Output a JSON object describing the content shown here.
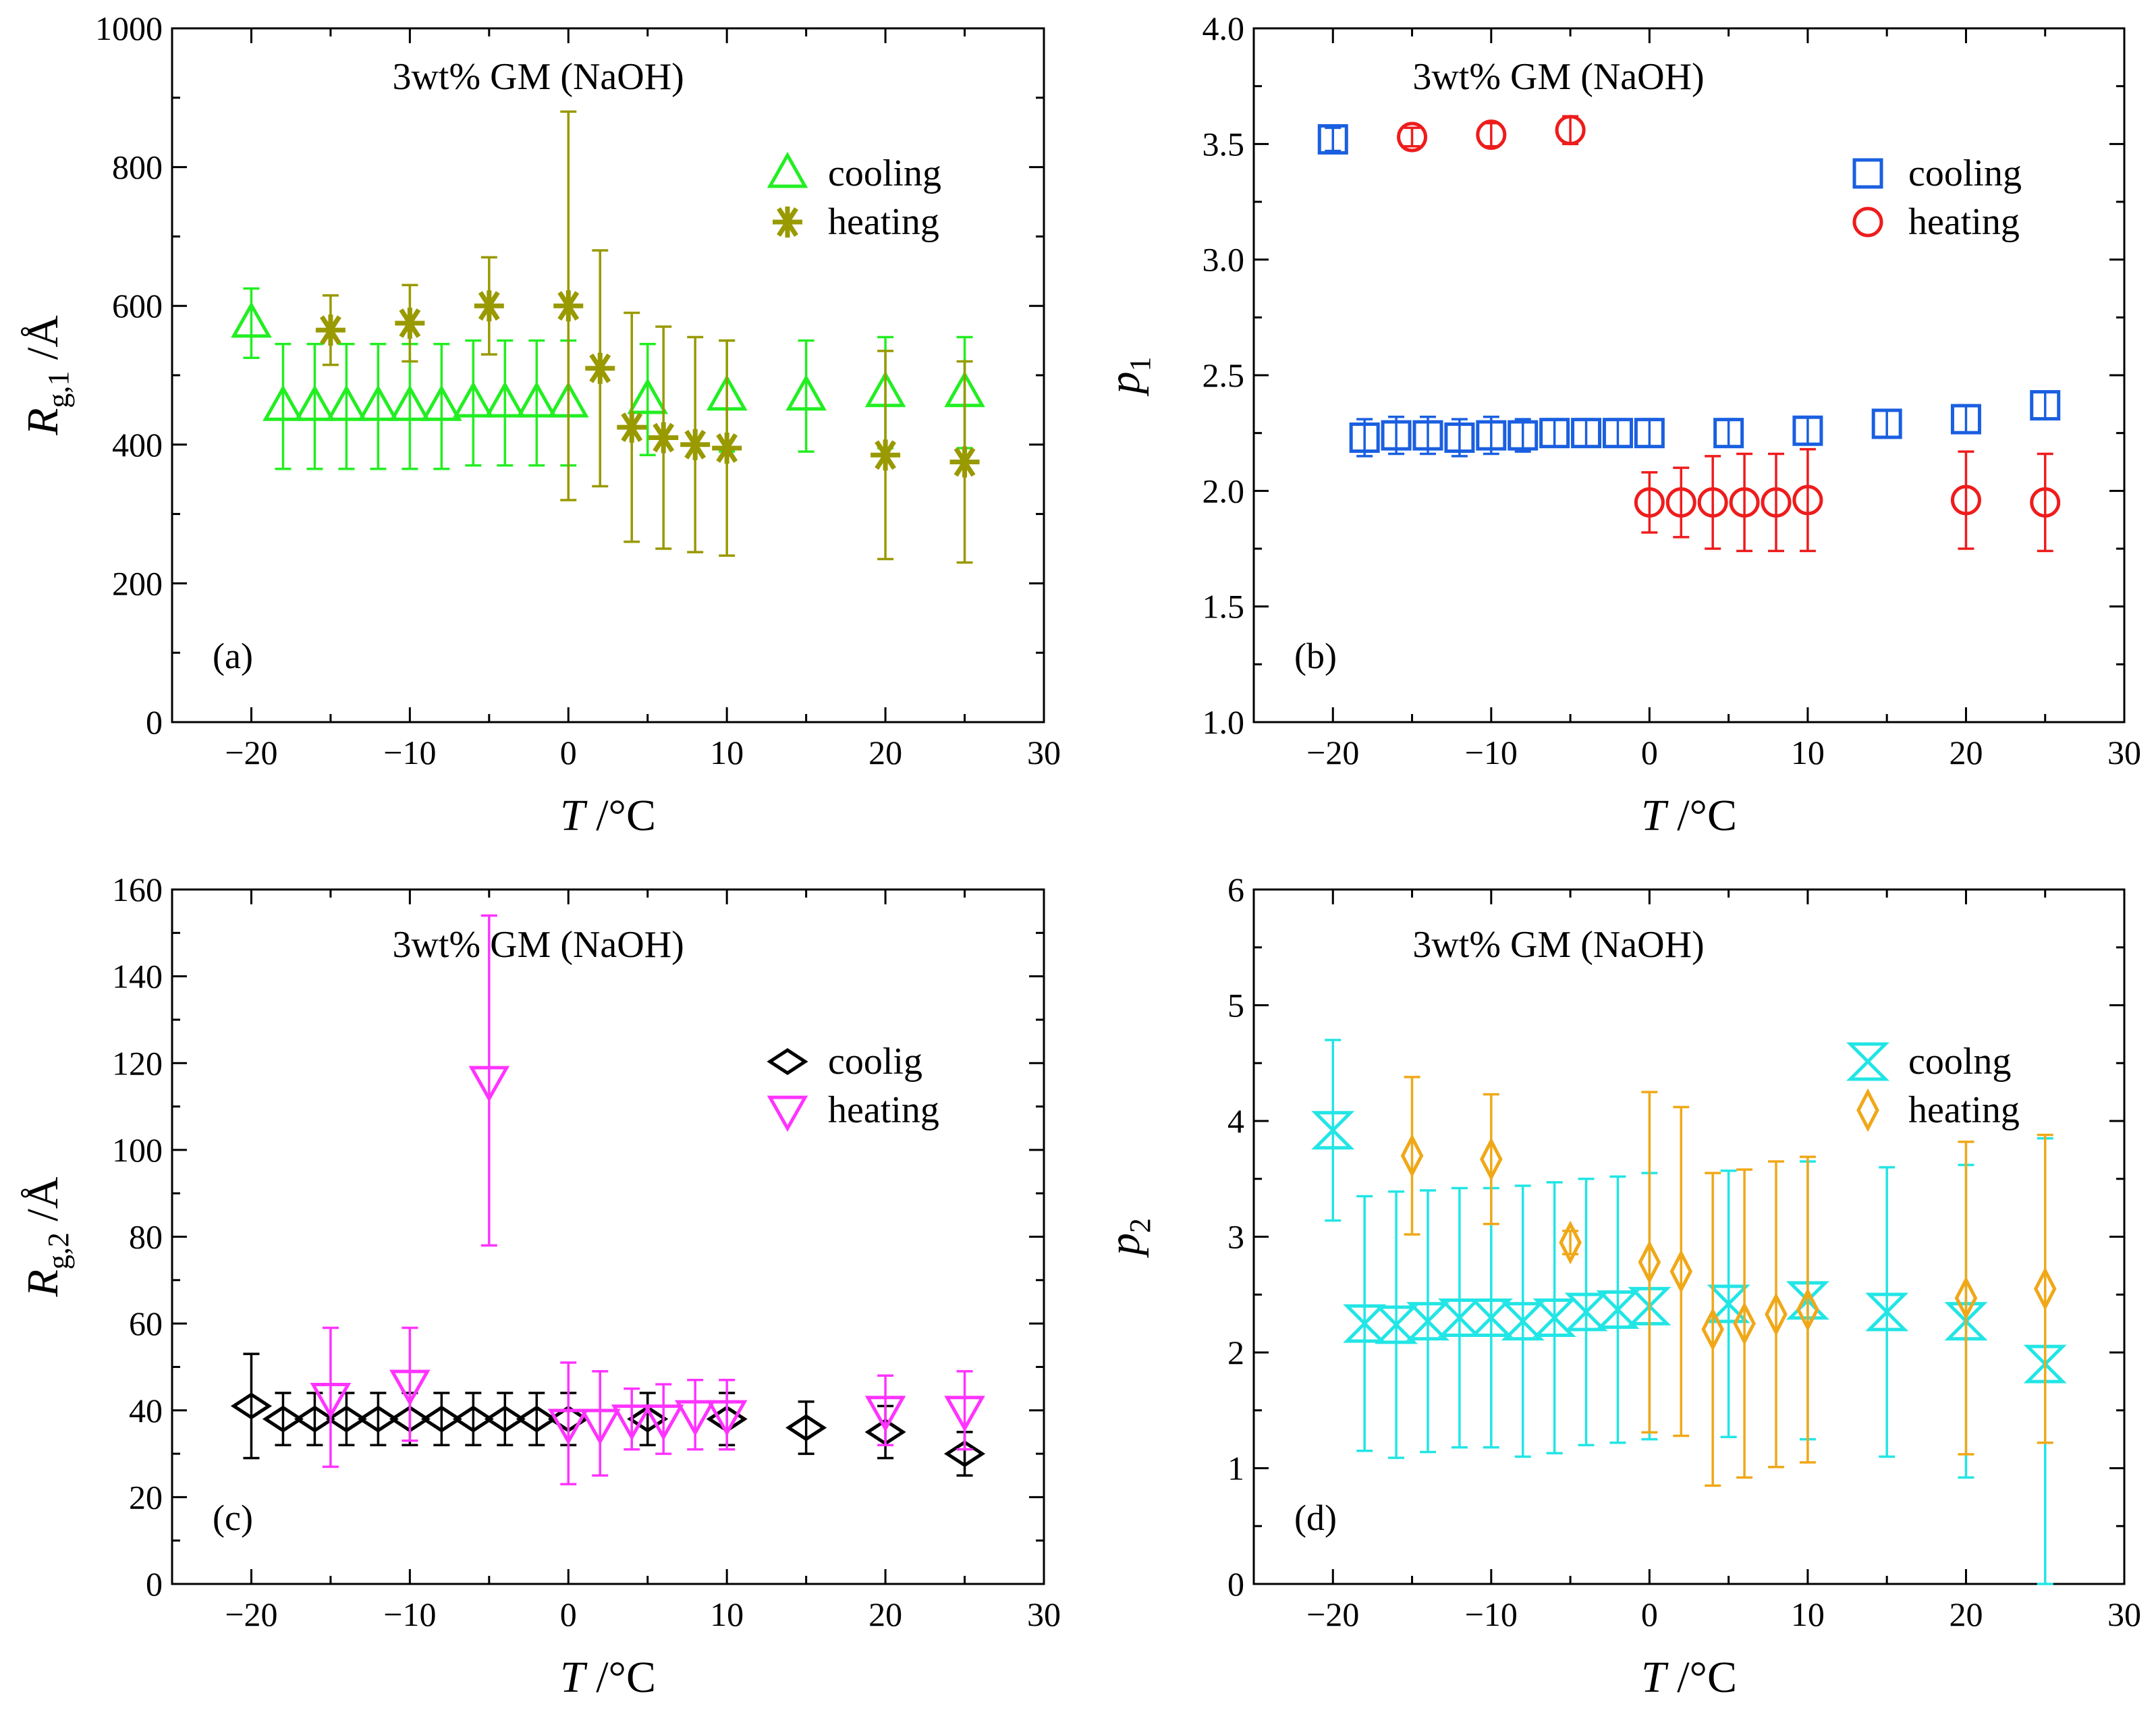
{
  "figure": {
    "x_title_var": "T",
    "x_title_unit": " /°C"
  },
  "chart_data": [
    {
      "panel": "a",
      "type": "scatter",
      "panel_label": "(a)",
      "title": "3wt% GM (NaOH)",
      "y_var": "R",
      "y_sub": "g,1",
      "y_unit": " /Å",
      "xlim": [
        -25,
        30
      ],
      "ylim": [
        0,
        1000
      ],
      "xticks": [
        -20,
        -10,
        0,
        10,
        20,
        30
      ],
      "xtick_labels": [
        "−20",
        "−10",
        "0",
        "10",
        "20",
        "30"
      ],
      "yticks": [
        0,
        200,
        400,
        600,
        800,
        1000
      ],
      "ytick_labels": [
        "0",
        "200",
        "400",
        "600",
        "800",
        "1000"
      ],
      "legend_position": "top-right",
      "series": [
        {
          "name": "cooling",
          "marker": "triangle-up",
          "color": "#22ee22",
          "x": [
            -20,
            -18,
            -16,
            -14,
            -12,
            -10,
            -8,
            -6,
            -4,
            -2,
            0,
            5,
            10,
            15,
            20,
            25
          ],
          "y": [
            575,
            455,
            455,
            455,
            455,
            455,
            455,
            460,
            460,
            460,
            460,
            465,
            470,
            470,
            475,
            475
          ],
          "err": [
            50,
            90,
            90,
            90,
            90,
            90,
            90,
            90,
            90,
            90,
            90,
            80,
            80,
            80,
            80,
            80
          ]
        },
        {
          "name": "heating",
          "marker": "asterisk",
          "color": "#999900",
          "x": [
            -15,
            -10,
            -5,
            0,
            2,
            4,
            6,
            8,
            10,
            20,
            25
          ],
          "y": [
            565,
            575,
            600,
            600,
            510,
            425,
            410,
            400,
            395,
            385,
            375
          ],
          "err": [
            50,
            55,
            70,
            280,
            170,
            165,
            160,
            155,
            155,
            150,
            145
          ]
        }
      ]
    },
    {
      "panel": "b",
      "type": "scatter",
      "panel_label": "(b)",
      "title": "3wt% GM (NaOH)",
      "y_var": "p",
      "y_sub": "1",
      "y_unit": "",
      "xlim": [
        -25,
        30
      ],
      "ylim": [
        1.0,
        4.0
      ],
      "xticks": [
        -20,
        -10,
        0,
        10,
        20,
        30
      ],
      "xtick_labels": [
        "−20",
        "−10",
        "0",
        "10",
        "20",
        "30"
      ],
      "yticks": [
        1.0,
        1.5,
        2.0,
        2.5,
        3.0,
        3.5,
        4.0
      ],
      "ytick_labels": [
        "1.0",
        "1.5",
        "2.0",
        "2.5",
        "3.0",
        "3.5",
        "4.0"
      ],
      "legend_position": "top-right",
      "series": [
        {
          "name": "cooling",
          "marker": "square",
          "color": "#1a5fe0",
          "x": [
            -20,
            -18,
            -16,
            -14,
            -12,
            -10,
            -8,
            -6,
            -4,
            -2,
            0,
            5,
            10,
            15,
            20,
            25
          ],
          "y": [
            3.52,
            2.23,
            2.24,
            2.24,
            2.23,
            2.24,
            2.24,
            2.25,
            2.25,
            2.25,
            2.25,
            2.25,
            2.26,
            2.29,
            2.31,
            2.37
          ],
          "err": [
            0.05,
            0.08,
            0.08,
            0.08,
            0.08,
            0.08,
            0.07,
            0.06,
            0.06,
            0.06,
            0.06,
            0.06,
            0.06,
            0.06,
            0.06,
            0.06
          ]
        },
        {
          "name": "heating",
          "marker": "circle",
          "color": "#ee1c1c",
          "x": [
            -15,
            -10,
            -5,
            0,
            2,
            4,
            6,
            8,
            10,
            20,
            25
          ],
          "y": [
            3.53,
            3.54,
            3.56,
            1.95,
            1.95,
            1.95,
            1.95,
            1.95,
            1.96,
            1.96,
            1.95
          ],
          "err": [
            0.04,
            0.05,
            0.06,
            0.13,
            0.15,
            0.2,
            0.21,
            0.21,
            0.22,
            0.21,
            0.21
          ]
        }
      ]
    },
    {
      "panel": "c",
      "type": "scatter",
      "panel_label": "(c)",
      "title": "3wt% GM (NaOH)",
      "y_var": "R",
      "y_sub": "g,2",
      "y_unit": " /Å",
      "xlim": [
        -25,
        30
      ],
      "ylim": [
        0,
        160
      ],
      "xticks": [
        -20,
        -10,
        0,
        10,
        20,
        30
      ],
      "xtick_labels": [
        "−20",
        "−10",
        "0",
        "10",
        "20",
        "30"
      ],
      "yticks": [
        0,
        20,
        40,
        60,
        80,
        100,
        120,
        140,
        160
      ],
      "ytick_labels": [
        "0",
        "20",
        "40",
        "60",
        "80",
        "100",
        "120",
        "140",
        "160"
      ],
      "legend_position": "top-right",
      "series": [
        {
          "name": "coolig",
          "marker": "diamond-wide",
          "color": "#000000",
          "x": [
            -20,
            -18,
            -16,
            -14,
            -12,
            -10,
            -8,
            -6,
            -4,
            -2,
            0,
            5,
            10,
            15,
            20,
            25
          ],
          "y": [
            41,
            38,
            38,
            38,
            38,
            38,
            38,
            38,
            38,
            38,
            38,
            38,
            38,
            36,
            35,
            30
          ],
          "err": [
            12,
            6,
            6,
            6,
            6,
            6,
            6,
            6,
            6,
            6,
            6,
            6,
            6,
            6,
            6,
            5
          ]
        },
        {
          "name": "heating",
          "marker": "triangle-down",
          "color": "#ff33ff",
          "x": [
            -15,
            -10,
            -5,
            0,
            2,
            4,
            6,
            8,
            10,
            20,
            25
          ],
          "y": [
            43,
            46,
            116,
            37,
            37,
            38,
            38,
            39,
            39,
            40,
            40
          ],
          "err": [
            16,
            13,
            38,
            14,
            12,
            7,
            8,
            8,
            8,
            8,
            9
          ]
        }
      ]
    },
    {
      "panel": "d",
      "type": "scatter",
      "panel_label": "(d)",
      "title": "3wt% GM (NaOH)",
      "y_var": "p",
      "y_sub": "2",
      "y_unit": "",
      "xlim": [
        -25,
        30
      ],
      "ylim": [
        0,
        6
      ],
      "xticks": [
        -20,
        -10,
        0,
        10,
        20,
        30
      ],
      "xtick_labels": [
        "−20",
        "−10",
        "0",
        "10",
        "20",
        "30"
      ],
      "yticks": [
        0,
        1,
        2,
        3,
        4,
        5,
        6
      ],
      "ytick_labels": [
        "0",
        "1",
        "2",
        "3",
        "4",
        "5",
        "6"
      ],
      "legend_position": "top-right",
      "series": [
        {
          "name": "coolng",
          "marker": "hourglass",
          "color": "#22e5e5",
          "x": [
            -20,
            -18,
            -16,
            -14,
            -12,
            -10,
            -8,
            -6,
            -4,
            -2,
            0,
            5,
            10,
            15,
            20,
            25
          ],
          "y": [
            3.92,
            2.25,
            2.24,
            2.27,
            2.3,
            2.3,
            2.27,
            2.3,
            2.35,
            2.37,
            2.4,
            2.42,
            2.45,
            2.35,
            2.27,
            1.9
          ],
          "err": [
            0.78,
            1.1,
            1.15,
            1.13,
            1.12,
            1.12,
            1.17,
            1.17,
            1.15,
            1.15,
            1.15,
            1.15,
            1.2,
            1.25,
            1.35,
            1.95
          ]
        },
        {
          "name": "heating",
          "marker": "diamond-tall",
          "color": "#f0a818",
          "x": [
            -15,
            -10,
            -5,
            0,
            2,
            4,
            6,
            8,
            10,
            20,
            25
          ],
          "y": [
            3.7,
            3.67,
            2.95,
            2.78,
            2.7,
            2.2,
            2.25,
            2.33,
            2.37,
            2.47,
            2.55
          ],
          "err": [
            0.68,
            0.56,
            0.1,
            1.47,
            1.42,
            1.35,
            1.33,
            1.32,
            1.32,
            1.35,
            1.33
          ]
        }
      ]
    }
  ]
}
